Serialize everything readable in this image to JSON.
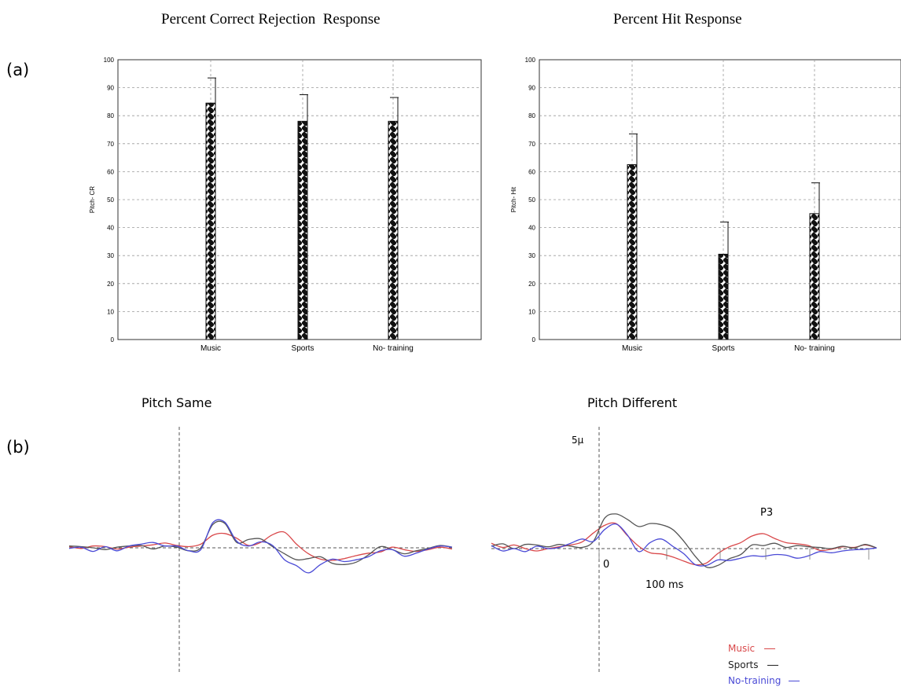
{
  "panel_labels": {
    "a": "(a)",
    "b": "(b)"
  },
  "colors": {
    "music": "#d9484a",
    "sports": "#555555",
    "no_training": "#4a4ad6",
    "grid": "#9a9a9a"
  },
  "chart_data": [
    {
      "type": "bar",
      "title": "Percent Correct Rejection  Response",
      "ylabel": "Pitch- CR",
      "categories": [
        "Music",
        "Sports",
        "No- training"
      ],
      "values": [
        84.5,
        78,
        78
      ],
      "errors": [
        9,
        9.5,
        8.5
      ],
      "ylim": [
        0,
        100
      ],
      "yticks": [
        0,
        10,
        20,
        30,
        40,
        50,
        60,
        70,
        80,
        90,
        100
      ],
      "grid": true
    },
    {
      "type": "bar",
      "title": "Percent Hit Response",
      "ylabel": "Pitch- Hit",
      "categories": [
        "Music",
        "Sports",
        "No- training"
      ],
      "values": [
        62.5,
        30.5,
        45
      ],
      "errors": [
        11,
        11.5,
        11
      ],
      "ylim": [
        0,
        100
      ],
      "yticks": [
        0,
        10,
        20,
        30,
        40,
        50,
        60,
        70,
        80,
        90,
        100
      ],
      "grid": true
    },
    {
      "type": "line",
      "title": "Pitch Same",
      "series": [
        {
          "name": "Music",
          "values": [
            0.2,
            -0.1,
            0.3,
            0.2,
            -0.2,
            0.1,
            0.3,
            0.5,
            0.8,
            0.4,
            0.2,
            0.6,
            2.1,
            2.4,
            1.6,
            0.4,
            0.9,
            2.2,
            2.6,
            0.6,
            -1.0,
            -1.9,
            -2.1,
            -1.8,
            -1.3,
            -0.9,
            -0.7,
            0.1,
            -0.3,
            -0.6,
            -0.3,
            0.1,
            -0.2
          ]
        },
        {
          "name": "Sports",
          "values": [
            0.3,
            0.2,
            0.0,
            -0.3,
            0.1,
            0.3,
            0.4,
            -0.2,
            0.3,
            0.1,
            -0.5,
            0.0,
            3.9,
            4.1,
            0.9,
            1.4,
            1.5,
            0.2,
            -1.0,
            -2.0,
            -1.8,
            -1.5,
            -2.6,
            -2.8,
            -2.4,
            -1.2,
            0.2,
            -0.3,
            -1.0,
            -0.5,
            -0.1,
            0.4,
            0.1
          ]
        },
        {
          "name": "No-training",
          "values": [
            -0.1,
            0.1,
            -0.6,
            0.2,
            -0.5,
            0.3,
            0.6,
            0.9,
            0.3,
            0.3,
            -0.5,
            -0.3,
            4.2,
            4.3,
            1.1,
            0.3,
            1.0,
            0.4,
            -2.0,
            -3.0,
            -4.2,
            -2.8,
            -1.9,
            -2.3,
            -2.0,
            -1.5,
            -0.5,
            -0.3,
            -1.4,
            -0.9,
            -0.2,
            0.3,
            0.1
          ]
        }
      ]
    },
    {
      "type": "line",
      "title": "Pitch Different",
      "y_scale_label": "5µ",
      "x_zero_label": "0",
      "x_scale_label": "100 ms",
      "annotation": "P3",
      "series": [
        {
          "name": "Music",
          "values": [
            0.9,
            0.2,
            0.6,
            0.0,
            -0.4,
            0.0,
            0.3,
            0.6,
            1.1,
            2.6,
            3.9,
            4.2,
            2.2,
            0.4,
            -0.7,
            -0.9,
            -1.4,
            -2.1,
            -2.7,
            -2.4,
            -0.8,
            0.3,
            1.0,
            2.1,
            2.5,
            1.7,
            1.0,
            0.8,
            0.5,
            -0.3,
            -0.1,
            0.3,
            0.2,
            0.6,
            0.1
          ]
        },
        {
          "name": "Sports",
          "values": [
            0.4,
            0.8,
            0.0,
            0.7,
            0.6,
            0.3,
            0.7,
            0.4,
            0.2,
            1.2,
            5.1,
            5.8,
            4.9,
            3.7,
            4.2,
            4.0,
            3.2,
            1.2,
            -1.3,
            -3.1,
            -2.8,
            -1.7,
            -1.0,
            0.6,
            0.5,
            0.9,
            0.2,
            0.5,
            0.3,
            0.2,
            0.0,
            0.4,
            0.1,
            0.7,
            0.1
          ]
        },
        {
          "name": "No-training",
          "values": [
            0.5,
            -0.4,
            0.0,
            -0.5,
            0.4,
            0.0,
            0.2,
            0.9,
            1.6,
            1.2,
            3.2,
            4.1,
            2.3,
            -0.5,
            1.0,
            1.6,
            0.4,
            -0.9,
            -2.7,
            -2.8,
            -1.9,
            -2.0,
            -1.6,
            -1.2,
            -1.3,
            -1.0,
            -1.1,
            -1.6,
            -1.2,
            -0.5,
            -0.7,
            -0.4,
            -0.2,
            -0.1,
            0.1
          ]
        }
      ]
    }
  ],
  "legend": [
    {
      "label": "Music",
      "color": "#d9484a"
    },
    {
      "label": "Sports",
      "color": "#222222"
    },
    {
      "label": "No-training",
      "color": "#4a4ad6"
    }
  ]
}
